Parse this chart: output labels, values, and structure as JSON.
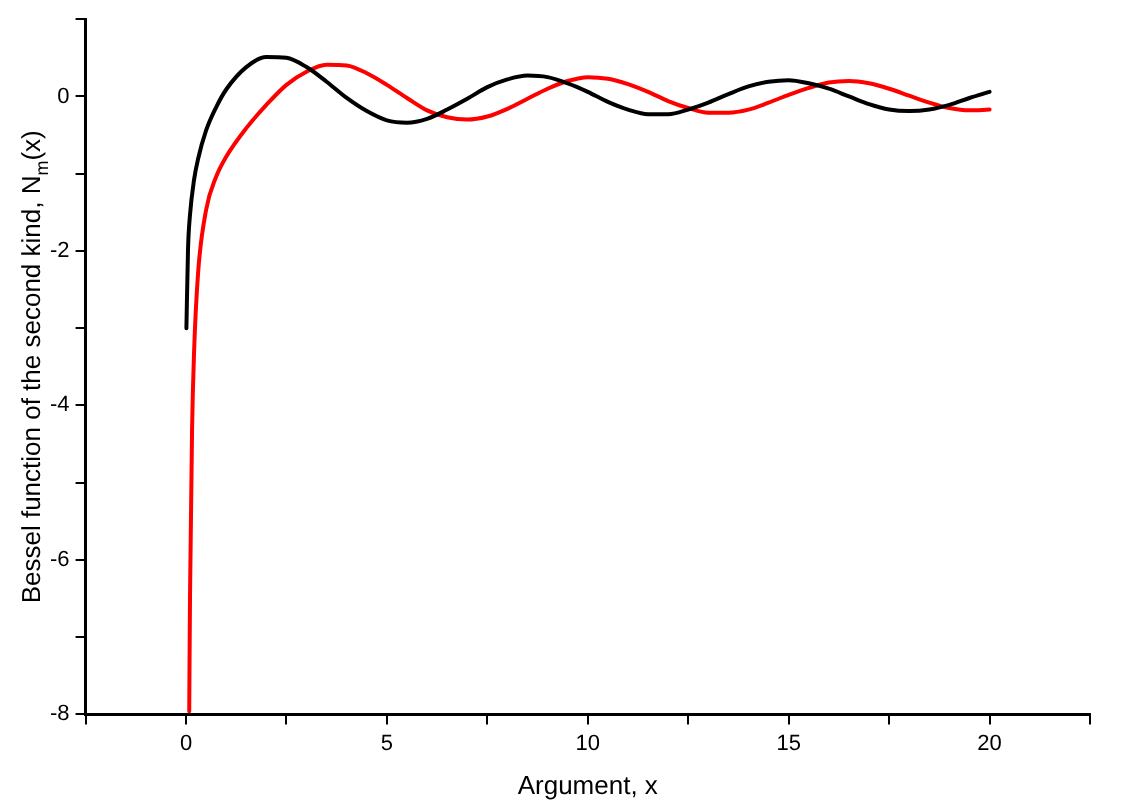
{
  "chart_data": {
    "type": "line",
    "xlabel": "Argument, x",
    "ylabel": "Bessel function of the second kind, N$_{m}$(x)",
    "xlim": [
      -2.5,
      22.5
    ],
    "xticks": [
      {
        "value": -2.5,
        "label": null
      },
      0,
      {
        "value": 2.5,
        "label": null
      },
      5,
      {
        "value": 7.5,
        "label": null
      },
      10,
      {
        "value": 12.5,
        "label": null
      },
      15,
      {
        "value": 17.5,
        "label": null
      },
      20,
      {
        "value": 22.5,
        "label": null
      }
    ],
    "ylim": [
      -8,
      1
    ],
    "yticks": [
      -8,
      {
        "value": -7,
        "label": null
      },
      -6,
      {
        "value": -5,
        "label": null
      },
      -4,
      {
        "value": -3,
        "label": null
      },
      -2,
      {
        "value": -1,
        "label": null
      },
      0,
      {
        "value": 1,
        "label": null
      }
    ],
    "grid": false,
    "legend": false,
    "marker": "none",
    "line_style": "solid",
    "series": [
      {
        "color": "#000000",
        "x": [
          0.01,
          0.05,
          0.1,
          0.2,
          0.3,
          0.5,
          0.75,
          1,
          1.5,
          2,
          2.5,
          3,
          3.5,
          4,
          4.5,
          5,
          5.5,
          6,
          6.5,
          7,
          7.5,
          8,
          8.5,
          9,
          9.5,
          10,
          10.5,
          11,
          11.5,
          12,
          12.5,
          13,
          13.5,
          14,
          14.5,
          15,
          15.5,
          16,
          16.5,
          17,
          17.5,
          18,
          18.5,
          19,
          19.5,
          20
        ],
        "values": [
          -3.0,
          -1.98,
          -1.53,
          -1.08,
          -0.81,
          -0.44,
          -0.14,
          0.09,
          0.38,
          0.51,
          0.5,
          0.38,
          0.19,
          -0.02,
          -0.19,
          -0.31,
          -0.34,
          -0.29,
          -0.17,
          -0.03,
          0.12,
          0.22,
          0.27,
          0.25,
          0.17,
          0.06,
          -0.07,
          -0.17,
          -0.23,
          -0.23,
          -0.17,
          -0.08,
          0.03,
          0.13,
          0.19,
          0.21,
          0.17,
          0.1,
          0.0,
          -0.1,
          -0.17,
          -0.19,
          -0.17,
          -0.11,
          -0.02,
          0.06
        ]
      },
      {
        "color": "#ff0000",
        "x": [
          0.08,
          0.1,
          0.15,
          0.2,
          0.3,
          0.5,
          0.75,
          1,
          1.5,
          2,
          2.5,
          3,
          3.5,
          4,
          4.5,
          5,
          5.5,
          6,
          6.5,
          7,
          7.5,
          8,
          8.5,
          9,
          9.5,
          10,
          10.5,
          11,
          11.5,
          12,
          12.5,
          13,
          13.5,
          14,
          14.5,
          15,
          15.5,
          16,
          16.5,
          17,
          17.5,
          18,
          18.5,
          19,
          19.5,
          20
        ],
        "values": [
          -7.96,
          -6.46,
          -4.34,
          -3.32,
          -2.29,
          -1.47,
          -1.04,
          -0.78,
          -0.41,
          -0.11,
          0.15,
          0.32,
          0.41,
          0.4,
          0.3,
          0.15,
          -0.02,
          -0.18,
          -0.27,
          -0.3,
          -0.26,
          -0.16,
          -0.03,
          0.1,
          0.2,
          0.25,
          0.23,
          0.16,
          0.06,
          -0.06,
          -0.15,
          -0.21,
          -0.21,
          -0.17,
          -0.08,
          0.02,
          0.11,
          0.18,
          0.2,
          0.17,
          0.1,
          0.01,
          -0.08,
          -0.15,
          -0.18,
          -0.17
        ]
      }
    ]
  }
}
